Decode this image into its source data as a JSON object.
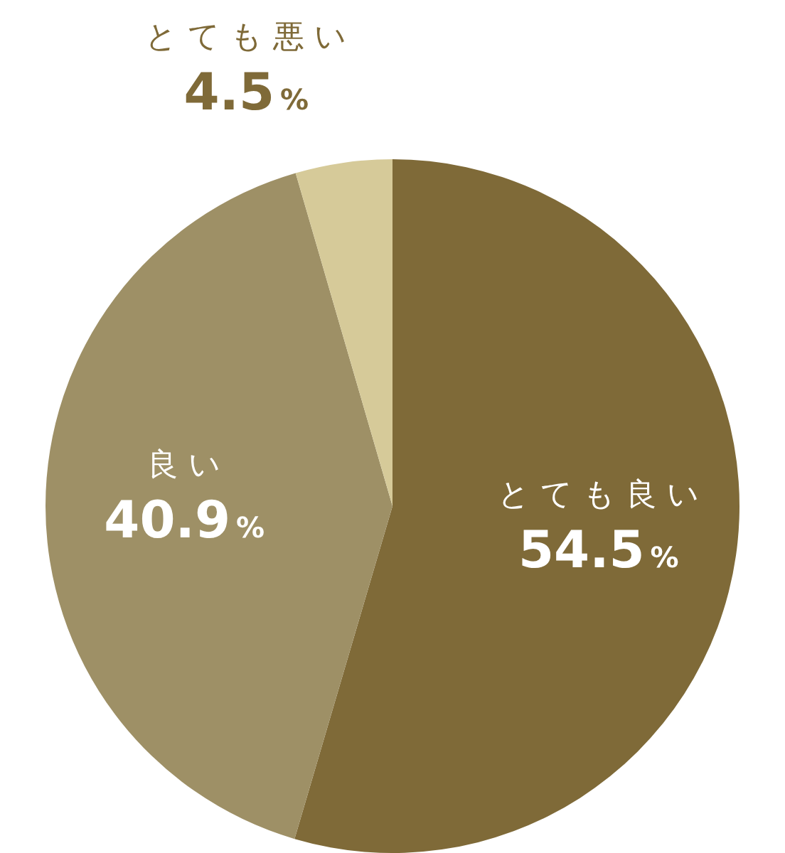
{
  "chart_data": {
    "type": "pie",
    "categories": [
      "とても良い",
      "良い",
      "とても悪い"
    ],
    "values": [
      54.5,
      40.9,
      4.5
    ],
    "colors": [
      "#7f6a38",
      "#9e9066",
      "#d6ca99"
    ],
    "value_labels": [
      "54.5%",
      "40.9%",
      "4.5%"
    ],
    "legend": false
  }
}
